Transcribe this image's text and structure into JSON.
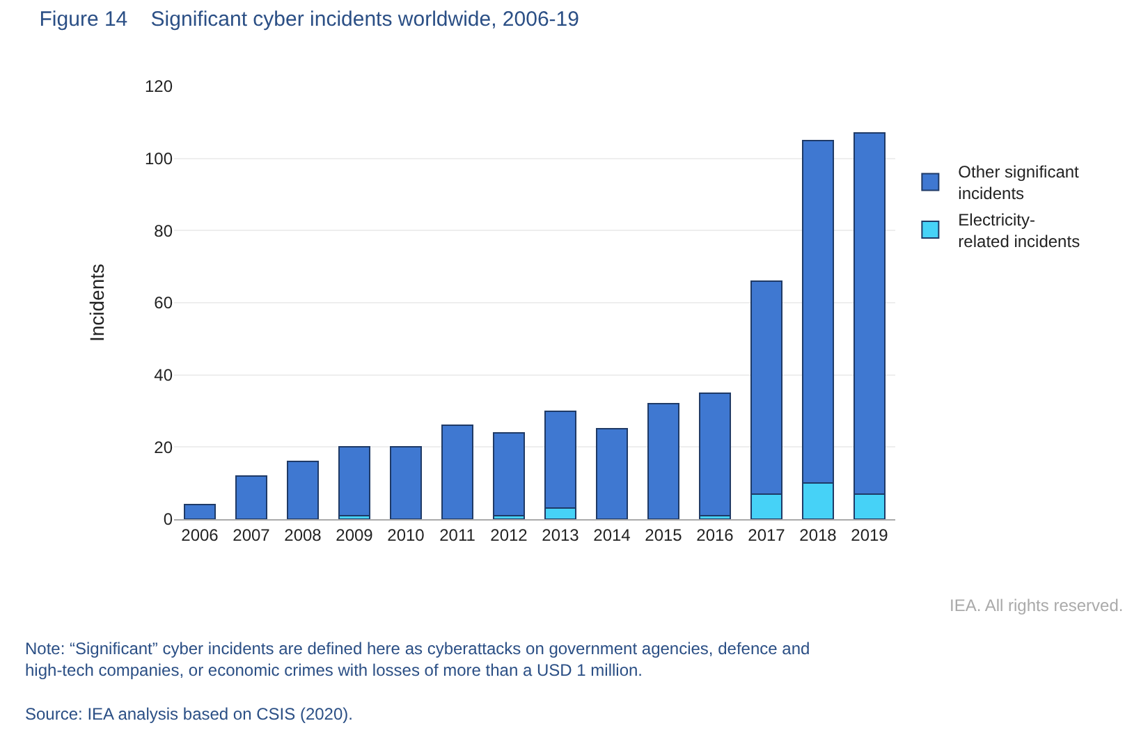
{
  "chart_data": {
    "type": "bar",
    "title": "Figure 14    Significant cyber incidents worldwide, 2006-19",
    "ylabel": "Incidents",
    "categories": [
      "2006",
      "2007",
      "2008",
      "2009",
      "2010",
      "2011",
      "2012",
      "2013",
      "2014",
      "2015",
      "2016",
      "2017",
      "2018",
      "2019"
    ],
    "series": [
      {
        "name": "Electricity-related incidents",
        "color": "#46d2f7",
        "values": [
          0,
          0,
          0,
          1,
          0,
          0,
          1,
          3,
          0,
          0,
          1,
          7,
          10,
          7
        ]
      },
      {
        "name": "Other significant incidents",
        "color": "#3f78d1",
        "values": [
          4,
          12,
          16,
          19,
          20,
          26,
          23,
          27,
          25,
          32,
          34,
          59,
          95,
          100
        ]
      }
    ],
    "stacked": true,
    "ylim": [
      0,
      120
    ],
    "yticks": [
      0,
      20,
      40,
      60,
      80,
      100,
      120
    ],
    "grid": "y",
    "legend": "right",
    "annotations": [
      "IEA. All rights reserved.",
      "Note: “Significant” cyber incidents are defined here as cyberattacks on government agencies, defence and high-tech companies, or economic crimes with losses of more than a USD 1 million.",
      "Source: IEA analysis based on CSIS (2020)."
    ]
  }
}
